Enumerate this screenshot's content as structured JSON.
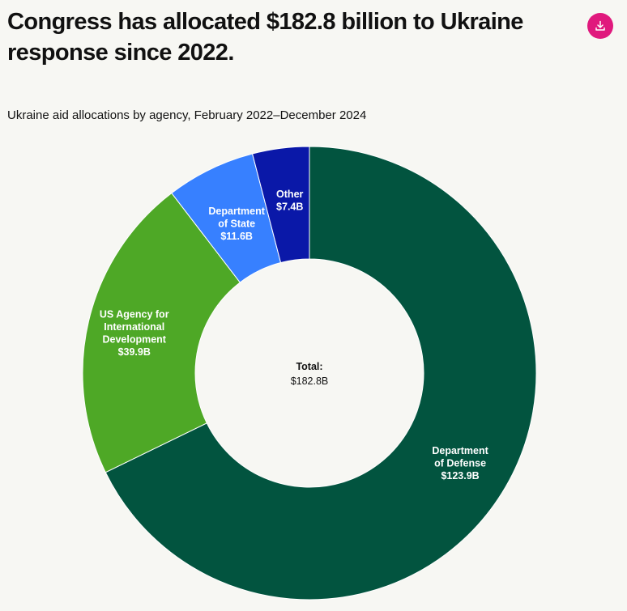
{
  "header": {
    "title": "Congress has allocated $182.8 billion to Ukraine response since 2022.",
    "download_icon": "download-icon"
  },
  "colors": {
    "accent": "#e0197d",
    "defense": "#02543f",
    "usaid": "#4ea826",
    "state": "#3780ff",
    "other": "#0a18a8"
  },
  "chart_data": {
    "type": "pie",
    "variant": "donut",
    "subtitle": "Ukraine aid allocations by agency, February 2022–December 2024",
    "center_label": "Total:",
    "center_value": "$182.8B",
    "total": 182.8,
    "unit": "billion USD",
    "slices": [
      {
        "name": [
          "Department",
          "of Defense"
        ],
        "value": 123.9,
        "label": "$123.9B",
        "color": "#02543f"
      },
      {
        "name": [
          "US Agency for",
          "International",
          "Development"
        ],
        "value": 39.9,
        "label": "$39.9B",
        "color": "#4ea826"
      },
      {
        "name": [
          "Department",
          "of State"
        ],
        "value": 11.6,
        "label": "$11.6B",
        "color": "#3780ff"
      },
      {
        "name": [
          "Other"
        ],
        "value": 7.4,
        "label": "$7.4B",
        "color": "#0a18a8"
      }
    ]
  }
}
